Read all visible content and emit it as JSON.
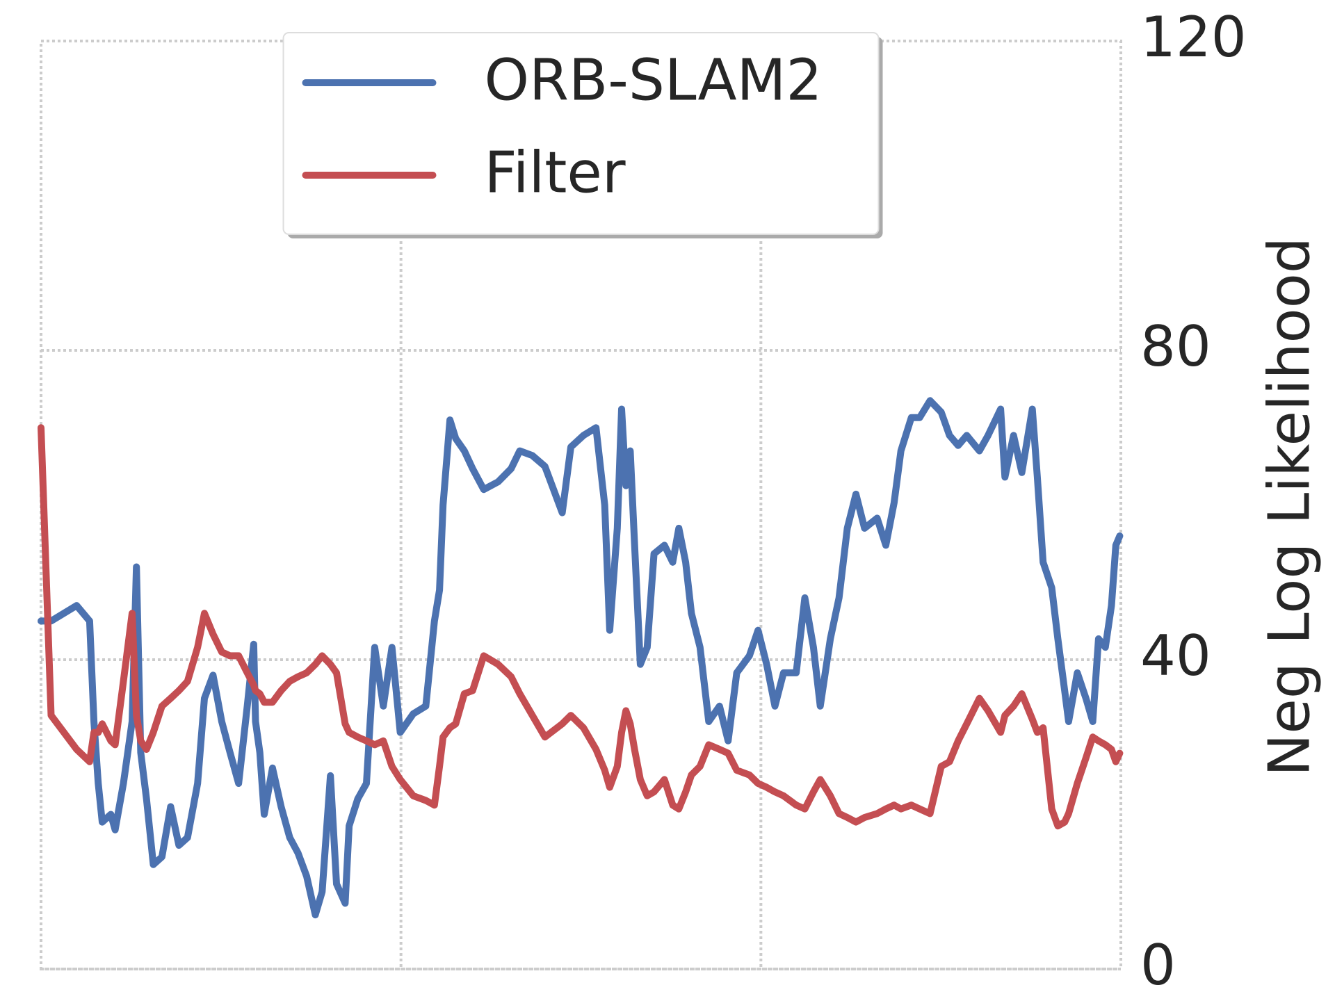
{
  "chart_data": {
    "type": "line",
    "ylabel": "Neg Log Likelihood",
    "yaxis_position": "right",
    "xlim": [
      0,
      300
    ],
    "xticks": [
      100,
      200
    ],
    "ylim": [
      0,
      120
    ],
    "yticks": [
      0,
      40,
      80,
      120
    ],
    "grid": true,
    "legend": "upper center",
    "x": [
      0,
      2.8,
      9.9,
      13.5,
      14.7,
      15.9,
      17,
      19.4,
      20.6,
      22.9,
      25.3,
      26.5,
      27.7,
      29.3,
      31.2,
      33.6,
      36,
      38.3,
      40.7,
      43.5,
      45.4,
      47.8,
      50.2,
      52.5,
      54.9,
      57.3,
      59.1,
      59.6,
      60.8,
      62,
      64.3,
      66.7,
      69.1,
      71.4,
      73.8,
      76.2,
      78.1,
      80.4,
      82.1,
      84.5,
      85.6,
      88,
      90.4,
      92.7,
      95.1,
      97.5,
      99.8,
      103.4,
      106.9,
      109.3,
      110.7,
      111.7,
      113.6,
      115.2,
      117.6,
      119.9,
      123,
      127,
      130.6,
      133,
      136.5,
      140,
      144.8,
      147.2,
      150.7,
      154.2,
      156.6,
      158,
      160.1,
      161.3,
      162.5,
      163.7,
      164.9,
      166.5,
      168.4,
      170.3,
      173.2,
      175.5,
      177.2,
      179.1,
      180.7,
      183.1,
      185.5,
      188.5,
      190.9,
      193.3,
      196.8,
      199.2,
      201.6,
      203.9,
      206.3,
      209.8,
      212.2,
      214.6,
      216.5,
      219.3,
      221.7,
      224,
      226.4,
      228.8,
      232.3,
      234.7,
      237,
      238.9,
      241.8,
      244.1,
      247,
      250.1,
      252.4,
      254.8,
      257.2,
      260.7,
      263.1,
      266.6,
      267.8,
      270.2,
      272.5,
      275.4,
      276.8,
      278.4,
      280.8,
      282.5,
      284.4,
      285.5,
      287.9,
      290.3,
      292.2,
      293.8,
      295.7,
      297.4,
      298.6,
      299.7
    ],
    "series": [
      {
        "name": "ORB-SLAM2",
        "color": "#4c72b0",
        "values": [
          45,
          45,
          47,
          45,
          32,
          24,
          19,
          20,
          18,
          24,
          32,
          52,
          28,
          22,
          13.5,
          14.5,
          21,
          16,
          17,
          24,
          35,
          38,
          32,
          28,
          24,
          34,
          42,
          32,
          28,
          20,
          26,
          21,
          17,
          15,
          12,
          7,
          10,
          25,
          11,
          8.5,
          18.5,
          22,
          24,
          41.6,
          34,
          41.6,
          30.6,
          33,
          34,
          45,
          49,
          60,
          71,
          68.6,
          67,
          64.7,
          62,
          63,
          64.7,
          67,
          66.4,
          65,
          59,
          67.5,
          69,
          70,
          60,
          43.8,
          57,
          72.4,
          62.5,
          67,
          55,
          39.4,
          41.6,
          53.7,
          54.8,
          52.6,
          57,
          52.6,
          46,
          41.6,
          32,
          34,
          29.5,
          38.3,
          40.5,
          43.8,
          39.4,
          34,
          38.3,
          38.3,
          48,
          41.6,
          34,
          42.7,
          48,
          57,
          61.4,
          57,
          58.3,
          54.8,
          60.3,
          67,
          71.3,
          71.3,
          73.5,
          72,
          69,
          67.7,
          69,
          67,
          69,
          72.4,
          63.6,
          69,
          64.2,
          72.4,
          63.6,
          52.6,
          49.3,
          42.7,
          36,
          32,
          38.3,
          35,
          32,
          42.7,
          41.6,
          47,
          54.8,
          56
        ]
      },
      {
        "name": "Filter",
        "color": "#c44e52",
        "values": [
          70,
          32.8,
          28.4,
          26.8,
          30.6,
          30.6,
          31.7,
          29.5,
          29,
          37.2,
          46,
          32.8,
          29.5,
          28.4,
          30.6,
          34,
          35,
          36,
          37.2,
          41.6,
          46,
          43.3,
          41,
          40.5,
          40.5,
          38.3,
          36.7,
          36,
          35.6,
          34.5,
          34.5,
          36,
          37.2,
          37.8,
          38.3,
          39.4,
          40.5,
          39.4,
          38.3,
          31.7,
          30.6,
          30,
          29.5,
          29,
          29.5,
          26.2,
          24.5,
          22.4,
          21.8,
          21.2,
          26.2,
          30,
          31.2,
          31.7,
          35.6,
          36,
          40.5,
          39.4,
          37.8,
          35.6,
          32.8,
          30,
          31.7,
          32.8,
          31.2,
          28.4,
          25.7,
          23.5,
          26.2,
          30.6,
          33.4,
          31.7,
          28.4,
          24.5,
          22.4,
          22.9,
          24.5,
          21.2,
          20.7,
          22.9,
          25.1,
          26.2,
          29,
          28.4,
          27.9,
          25.7,
          25.1,
          24,
          23.5,
          22.9,
          22.4,
          21.2,
          20.7,
          22.9,
          24.5,
          22.4,
          20.1,
          19.6,
          19,
          19.6,
          20.1,
          20.7,
          21.2,
          20.7,
          21.2,
          20.7,
          20.1,
          26.2,
          26.8,
          29.5,
          31.7,
          35,
          33.4,
          30.6,
          32.8,
          34,
          35.6,
          32.3,
          30.6,
          31.2,
          20.7,
          18.5,
          19,
          20.1,
          24,
          27.3,
          30,
          29.5,
          29,
          28.4,
          26.8,
          27.9
        ]
      }
    ]
  }
}
